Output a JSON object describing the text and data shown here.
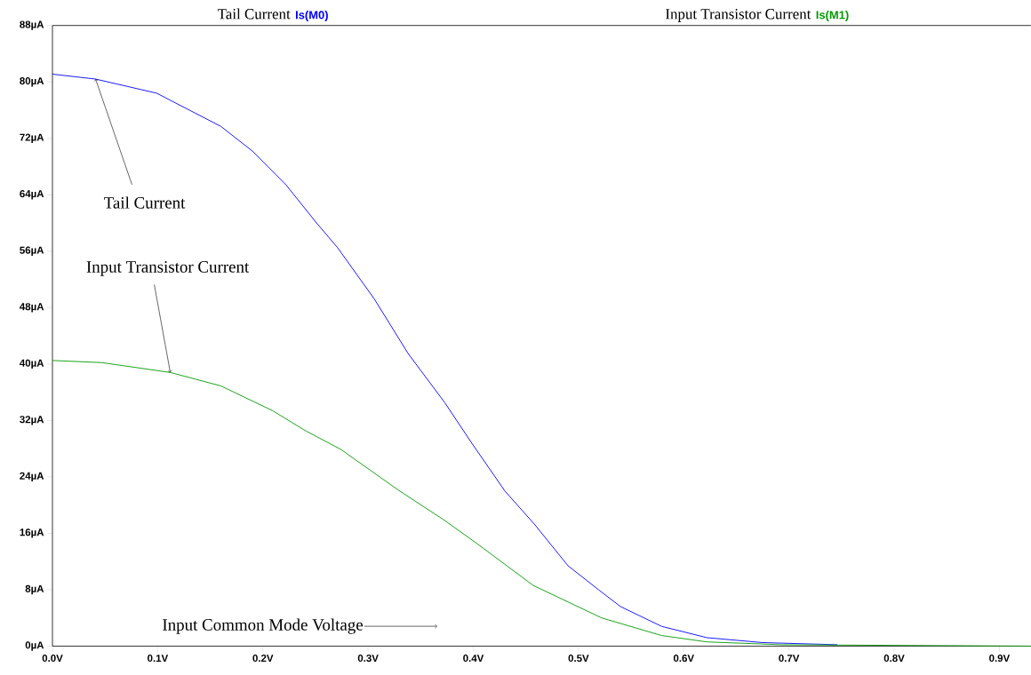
{
  "chart_data": {
    "type": "line",
    "xlabel": "Input Common Mode Voltage",
    "xlim": [
      0,
      0.93
    ],
    "ylim": [
      0,
      88
    ],
    "xticks": [
      {
        "value": 0,
        "label": "0.0V"
      },
      {
        "value": 0.1,
        "label": "0.1V"
      },
      {
        "value": 0.2,
        "label": "0.2V"
      },
      {
        "value": 0.3,
        "label": "0.3V"
      },
      {
        "value": 0.4,
        "label": "0.4V"
      },
      {
        "value": 0.5,
        "label": "0.5V"
      },
      {
        "value": 0.6,
        "label": "0.6V"
      },
      {
        "value": 0.7,
        "label": "0.7V"
      },
      {
        "value": 0.8,
        "label": "0.8V"
      },
      {
        "value": 0.9,
        "label": "0.9V"
      }
    ],
    "yticks": [
      {
        "value": 0,
        "label": "0µA"
      },
      {
        "value": 8,
        "label": "8µA"
      },
      {
        "value": 16,
        "label": "16µA"
      },
      {
        "value": 24,
        "label": "24µA"
      },
      {
        "value": 32,
        "label": "32µA"
      },
      {
        "value": 40,
        "label": "40µA"
      },
      {
        "value": 48,
        "label": "48µA"
      },
      {
        "value": 56,
        "label": "56µA"
      },
      {
        "value": 64,
        "label": "64µA"
      },
      {
        "value": 72,
        "label": "72µA"
      },
      {
        "value": 80,
        "label": "80µA"
      },
      {
        "value": 88,
        "label": "88µA"
      }
    ],
    "legend": "top",
    "grid": false,
    "series": [
      {
        "name": "Is(M0)",
        "color": "#0000ff",
        "x": [
          0,
          0.041,
          0.099,
          0.16,
          0.19,
          0.222,
          0.251,
          0.271,
          0.306,
          0.338,
          0.373,
          0.398,
          0.43,
          0.458,
          0.49,
          0.519,
          0.54,
          0.579,
          0.622,
          0.675,
          0.746
        ],
        "values": [
          81.1,
          80.4,
          78.4,
          73.7,
          70.2,
          65.4,
          60.0,
          56.5,
          49.2,
          41.5,
          34.5,
          28.9,
          22.0,
          17.3,
          11.4,
          8.0,
          5.6,
          2.8,
          1.2,
          0.5,
          0.2
        ]
      },
      {
        "name": "Is(M1)",
        "color": "#009900",
        "x": [
          0,
          0.047,
          0.112,
          0.16,
          0.209,
          0.241,
          0.274,
          0.329,
          0.371,
          0.403,
          0.457,
          0.522,
          0.579,
          0.622,
          0.693,
          0.93
        ],
        "values": [
          40.5,
          40.2,
          38.8,
          36.9,
          33.4,
          30.5,
          27.9,
          22.1,
          18.0,
          14.6,
          8.6,
          4.0,
          1.5,
          0.6,
          0.2,
          0
        ]
      }
    ],
    "annotations": [
      {
        "text": "Tail Current",
        "x": 0.041,
        "y": 80.4
      },
      {
        "text": "Input Transistor Current",
        "x": 0.112,
        "y": 38.8
      },
      "Tail Current",
      "Input Transistor Current"
    ]
  }
}
